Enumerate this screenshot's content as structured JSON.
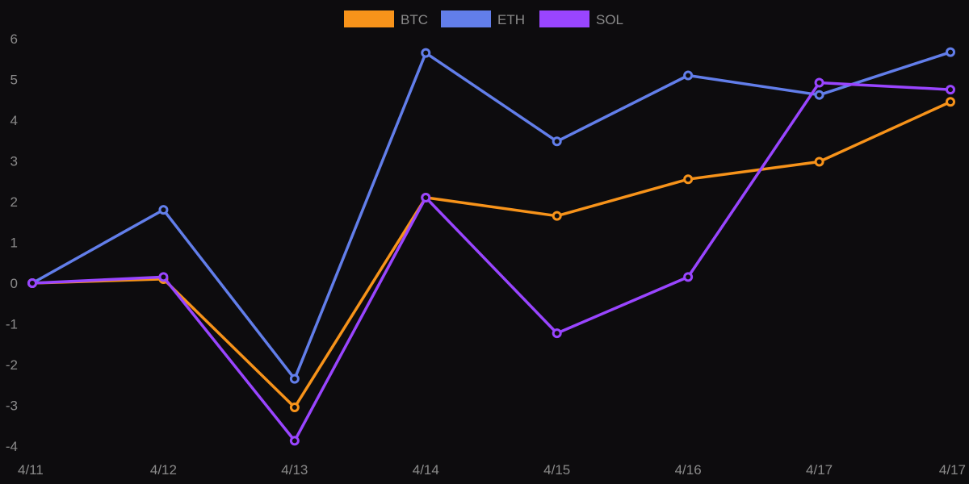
{
  "chart_data": {
    "type": "line",
    "categories": [
      "4/11",
      "4/12",
      "4/13",
      "4/14",
      "4/15",
      "4/16",
      "4/17",
      "4/17"
    ],
    "yticks": [
      -4,
      -3,
      -2,
      -1,
      0,
      1,
      2,
      3,
      4,
      5,
      6
    ],
    "ylim": [
      -4.4,
      6.2
    ],
    "grid": false,
    "legend_position": "top-center",
    "series": [
      {
        "name": "BTC",
        "color": "#f7931a",
        "values": [
          0.0,
          0.1,
          -3.05,
          2.1,
          1.65,
          2.55,
          2.98,
          4.45
        ]
      },
      {
        "name": "ETH",
        "color": "#627eea",
        "values": [
          0.0,
          1.8,
          -2.35,
          5.65,
          3.48,
          5.1,
          4.62,
          5.67
        ]
      },
      {
        "name": "SOL",
        "color": "#9945ff",
        "values": [
          0.0,
          0.15,
          -3.87,
          2.1,
          -1.23,
          0.15,
          4.92,
          4.75
        ]
      }
    ]
  }
}
